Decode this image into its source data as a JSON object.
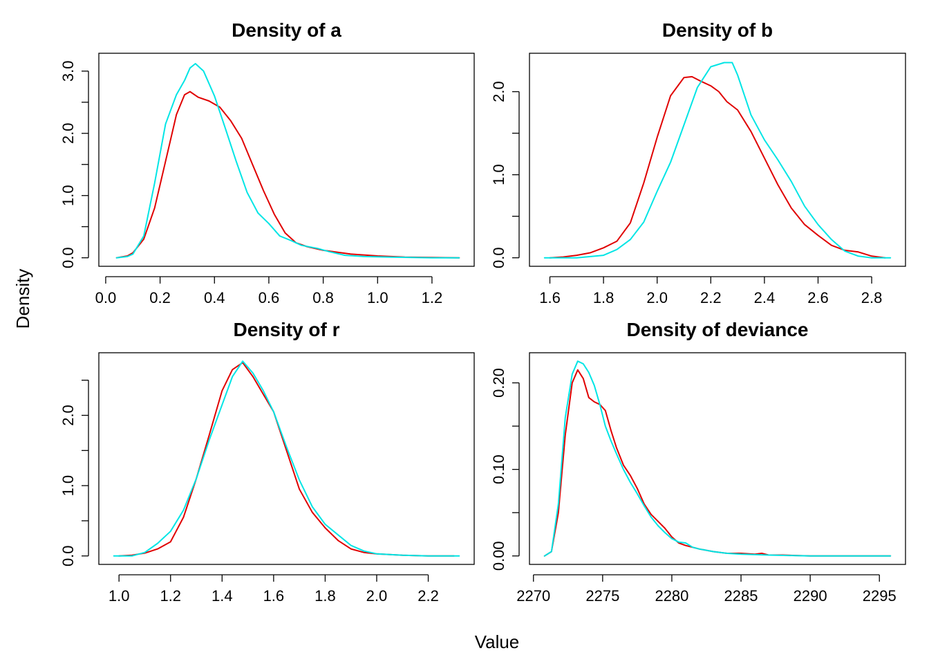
{
  "figure": {
    "xlabel": "Value",
    "ylabel": "Density",
    "series_colors": [
      "#e00000",
      "#00e5e5"
    ]
  },
  "chart_data": [
    {
      "type": "line",
      "title": "Density of a",
      "xlim": [
        0.03,
        1.3
      ],
      "ylim": [
        0,
        3.15
      ],
      "xticks": [
        0.0,
        0.2,
        0.4,
        0.6,
        0.8,
        1.0,
        1.2
      ],
      "xtick_labels": [
        "0.0",
        "0.2",
        "0.4",
        "0.6",
        "0.8",
        "1.0",
        "1.2"
      ],
      "yticks": [
        0.0,
        0.5,
        1.0,
        1.5,
        2.0,
        2.5,
        3.0
      ],
      "ytick_labels": [
        "0.0",
        "",
        "1.0",
        "",
        "2.0",
        "",
        "3.0"
      ],
      "series": [
        {
          "color": "#e00000",
          "x": [
            0.04,
            0.08,
            0.1,
            0.14,
            0.18,
            0.22,
            0.26,
            0.29,
            0.31,
            0.34,
            0.38,
            0.42,
            0.46,
            0.5,
            0.54,
            0.58,
            0.62,
            0.66,
            0.7,
            0.74,
            0.8,
            0.9,
            1.0,
            1.1,
            1.2,
            1.3
          ],
          "y": [
            0.0,
            0.03,
            0.08,
            0.3,
            0.8,
            1.55,
            2.3,
            2.62,
            2.67,
            2.58,
            2.52,
            2.42,
            2.2,
            1.92,
            1.5,
            1.08,
            0.7,
            0.4,
            0.24,
            0.18,
            0.12,
            0.06,
            0.03,
            0.01,
            0.005,
            0.0
          ]
        },
        {
          "color": "#00e5e5",
          "x": [
            0.04,
            0.08,
            0.1,
            0.14,
            0.18,
            0.22,
            0.26,
            0.29,
            0.31,
            0.33,
            0.36,
            0.4,
            0.44,
            0.48,
            0.52,
            0.56,
            0.6,
            0.64,
            0.68,
            0.72,
            0.78,
            0.82,
            0.88,
            0.95,
            1.05,
            1.2,
            1.3
          ],
          "y": [
            0.0,
            0.02,
            0.06,
            0.35,
            1.2,
            2.15,
            2.62,
            2.85,
            3.05,
            3.12,
            3.0,
            2.6,
            2.08,
            1.55,
            1.05,
            0.72,
            0.55,
            0.35,
            0.28,
            0.2,
            0.15,
            0.1,
            0.04,
            0.02,
            0.01,
            0.0,
            0.0
          ]
        }
      ]
    },
    {
      "type": "line",
      "title": "Density of b",
      "xlim": [
        1.58,
        2.87
      ],
      "ylim": [
        0,
        2.36
      ],
      "xticks": [
        1.6,
        1.8,
        2.0,
        2.2,
        2.4,
        2.6,
        2.8
      ],
      "xtick_labels": [
        "1.6",
        "1.8",
        "2.0",
        "2.2",
        "2.4",
        "2.6",
        "2.8"
      ],
      "yticks": [
        0.0,
        0.5,
        1.0,
        1.5,
        2.0
      ],
      "ytick_labels": [
        "0.0",
        "",
        "1.0",
        "",
        "2.0"
      ],
      "series": [
        {
          "color": "#e00000",
          "x": [
            1.6,
            1.65,
            1.7,
            1.75,
            1.8,
            1.85,
            1.9,
            1.95,
            2.0,
            2.05,
            2.1,
            2.13,
            2.16,
            2.2,
            2.23,
            2.26,
            2.3,
            2.35,
            2.4,
            2.45,
            2.5,
            2.55,
            2.6,
            2.65,
            2.7,
            2.75,
            2.8,
            2.85
          ],
          "y": [
            0.0,
            0.01,
            0.03,
            0.06,
            0.12,
            0.2,
            0.42,
            0.9,
            1.45,
            1.95,
            2.17,
            2.18,
            2.13,
            2.07,
            2.0,
            1.88,
            1.78,
            1.52,
            1.2,
            0.88,
            0.6,
            0.4,
            0.27,
            0.15,
            0.09,
            0.07,
            0.02,
            0.0
          ]
        },
        {
          "color": "#00e5e5",
          "x": [
            1.58,
            1.7,
            1.8,
            1.85,
            1.9,
            1.95,
            2.0,
            2.05,
            2.1,
            2.15,
            2.2,
            2.25,
            2.28,
            2.3,
            2.35,
            2.4,
            2.45,
            2.5,
            2.55,
            2.6,
            2.65,
            2.7,
            2.75,
            2.8,
            2.87
          ],
          "y": [
            0.0,
            0.0,
            0.03,
            0.1,
            0.22,
            0.43,
            0.8,
            1.15,
            1.6,
            2.05,
            2.3,
            2.35,
            2.35,
            2.2,
            1.72,
            1.42,
            1.18,
            0.92,
            0.62,
            0.4,
            0.22,
            0.08,
            0.02,
            0.0,
            0.0
          ]
        }
      ]
    },
    {
      "type": "line",
      "title": "Density of r",
      "xlim": [
        0.98,
        2.32
      ],
      "ylim": [
        0,
        2.77
      ],
      "xticks": [
        1.0,
        1.2,
        1.4,
        1.6,
        1.8,
        2.0,
        2.2
      ],
      "xtick_labels": [
        "1.0",
        "1.2",
        "1.4",
        "1.6",
        "1.8",
        "2.0",
        "2.2"
      ],
      "yticks": [
        0.0,
        0.5,
        1.0,
        1.5,
        2.0,
        2.5
      ],
      "ytick_labels": [
        "0.0",
        "",
        "1.0",
        "",
        "2.0",
        ""
      ],
      "series": [
        {
          "color": "#e00000",
          "x": [
            1.0,
            1.05,
            1.1,
            1.15,
            1.2,
            1.25,
            1.3,
            1.35,
            1.4,
            1.44,
            1.48,
            1.52,
            1.56,
            1.6,
            1.65,
            1.7,
            1.75,
            1.8,
            1.85,
            1.9,
            1.95,
            2.0,
            2.1,
            2.2,
            2.3
          ],
          "y": [
            0.0,
            0.01,
            0.04,
            0.1,
            0.2,
            0.55,
            1.1,
            1.72,
            2.35,
            2.65,
            2.75,
            2.55,
            2.3,
            2.05,
            1.5,
            0.95,
            0.62,
            0.4,
            0.22,
            0.1,
            0.05,
            0.03,
            0.01,
            0.0,
            0.0
          ]
        },
        {
          "color": "#00e5e5",
          "x": [
            0.98,
            1.05,
            1.1,
            1.15,
            1.2,
            1.25,
            1.3,
            1.35,
            1.4,
            1.44,
            1.48,
            1.52,
            1.56,
            1.6,
            1.65,
            1.7,
            1.75,
            1.8,
            1.85,
            1.9,
            1.95,
            2.0,
            2.1,
            2.2,
            2.32
          ],
          "y": [
            0.0,
            0.0,
            0.05,
            0.18,
            0.35,
            0.65,
            1.1,
            1.65,
            2.15,
            2.55,
            2.77,
            2.6,
            2.35,
            2.05,
            1.55,
            1.08,
            0.7,
            0.45,
            0.3,
            0.15,
            0.07,
            0.03,
            0.01,
            0.0,
            0.0
          ]
        }
      ]
    },
    {
      "type": "line",
      "title": "Density of deviance",
      "xlim": [
        2270.8,
        2295.8
      ],
      "ylim": [
        0,
        0.225
      ],
      "xticks": [
        2270,
        2275,
        2280,
        2285,
        2290,
        2295
      ],
      "xtick_labels": [
        "2270",
        "2275",
        "2280",
        "2285",
        "2290",
        "2295"
      ],
      "yticks": [
        0.0,
        0.05,
        0.1,
        0.15,
        0.2
      ],
      "ytick_labels": [
        "0.00",
        "",
        "0.10",
        "",
        "0.20"
      ],
      "series": [
        {
          "color": "#e00000",
          "x": [
            2270.8,
            2271.3,
            2271.8,
            2272.3,
            2272.8,
            2273.2,
            2273.6,
            2274.0,
            2274.4,
            2274.8,
            2275.2,
            2275.6,
            2276.0,
            2276.5,
            2277.0,
            2277.5,
            2278.0,
            2278.5,
            2279.0,
            2279.5,
            2280.0,
            2280.5,
            2281.0,
            2282.0,
            2283.0,
            2284.0,
            2285.0,
            2286.0,
            2286.5,
            2287.0,
            2288.0,
            2290.0,
            2293.0,
            2295.8
          ],
          "y": [
            0.0,
            0.005,
            0.05,
            0.14,
            0.2,
            0.215,
            0.205,
            0.183,
            0.178,
            0.175,
            0.168,
            0.145,
            0.125,
            0.105,
            0.093,
            0.078,
            0.06,
            0.048,
            0.04,
            0.032,
            0.022,
            0.015,
            0.012,
            0.008,
            0.005,
            0.003,
            0.003,
            0.002,
            0.003,
            0.001,
            0.001,
            0.0,
            0.0,
            0.0
          ]
        },
        {
          "color": "#00e5e5",
          "x": [
            2270.8,
            2271.3,
            2271.8,
            2272.3,
            2272.8,
            2273.2,
            2273.6,
            2274.0,
            2274.4,
            2274.8,
            2275.2,
            2275.6,
            2276.0,
            2276.5,
            2277.0,
            2277.5,
            2278.0,
            2278.5,
            2279.0,
            2279.5,
            2280.0,
            2280.5,
            2281.0,
            2281.5,
            2282.0,
            2283.0,
            2284.0,
            2285.0,
            2287.0,
            2290.0,
            2293.0,
            2295.8
          ],
          "y": [
            0.0,
            0.005,
            0.06,
            0.16,
            0.21,
            0.225,
            0.222,
            0.212,
            0.197,
            0.175,
            0.15,
            0.133,
            0.118,
            0.1,
            0.085,
            0.072,
            0.058,
            0.045,
            0.035,
            0.027,
            0.02,
            0.016,
            0.015,
            0.01,
            0.008,
            0.005,
            0.003,
            0.002,
            0.001,
            0.0,
            0.0,
            0.0
          ]
        }
      ]
    }
  ]
}
